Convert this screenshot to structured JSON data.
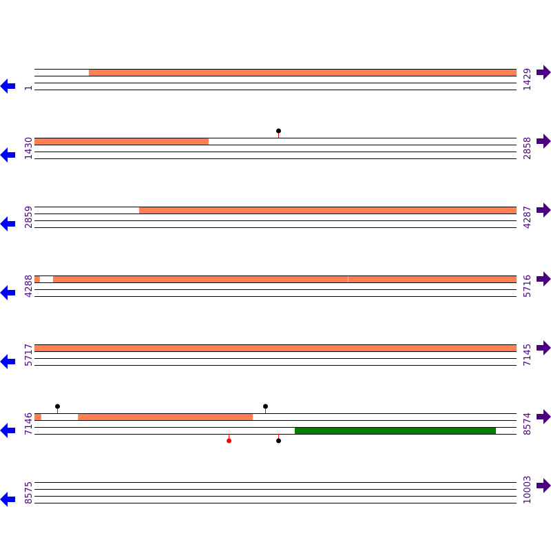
{
  "colors": {
    "orf": "#ff7f50",
    "orf_reverse": "#008000",
    "line": "#000000",
    "label": "#4b0082",
    "arrow_left": "#0000ff",
    "arrow_right": "#4b0082",
    "marker_stem": "#ff0000",
    "marker_black": "#000000",
    "marker_red": "#ff0000"
  },
  "icons": {
    "left": "arrow-left-icon",
    "right": "arrow-right-icon"
  },
  "rows": [
    {
      "start": "1",
      "end": "1429",
      "s": 1,
      "e": 1429,
      "features": [
        {
          "strand": "forward",
          "from": 162,
          "to": 1429
        }
      ],
      "markers": []
    },
    {
      "start": "1430",
      "end": "2858",
      "s": 1430,
      "e": 2858,
      "features": [
        {
          "strand": "forward",
          "from": 1430,
          "to": 1946
        }
      ],
      "markers": [
        {
          "strand": "forward",
          "pos": 2152,
          "color": "black"
        }
      ]
    },
    {
      "start": "2859",
      "end": "4287",
      "s": 2859,
      "e": 4287,
      "features": [
        {
          "strand": "forward",
          "from": 3169,
          "to": 4287
        }
      ],
      "markers": []
    },
    {
      "start": "4288",
      "end": "5716",
      "s": 4288,
      "e": 5716,
      "features": [
        {
          "strand": "forward",
          "from": 4288,
          "to": 4304
        },
        {
          "strand": "forward",
          "from": 4343,
          "to": 5216
        },
        {
          "strand": "forward",
          "from": 5217,
          "to": 5716
        }
      ],
      "markers": []
    },
    {
      "start": "5717",
      "end": "7145",
      "s": 5717,
      "e": 7145,
      "features": [
        {
          "strand": "forward",
          "from": 5717,
          "to": 7145
        }
      ],
      "markers": []
    },
    {
      "start": "7146",
      "end": "8574",
      "s": 7146,
      "e": 8574,
      "features": [
        {
          "strand": "forward",
          "from": 7146,
          "to": 7166
        },
        {
          "strand": "forward",
          "from": 7275,
          "to": 7793
        },
        {
          "strand": "reverse",
          "from": 7917,
          "to": 8513
        }
      ],
      "markers": [
        {
          "strand": "forward",
          "pos": 7213,
          "color": "black"
        },
        {
          "strand": "forward",
          "pos": 7829,
          "color": "black"
        },
        {
          "strand": "reverse",
          "pos": 7721,
          "color": "red"
        },
        {
          "strand": "reverse",
          "pos": 7868,
          "color": "black"
        }
      ]
    },
    {
      "start": "8575",
      "end": "10003",
      "s": 8575,
      "e": 10003,
      "features": [],
      "markers": []
    }
  ]
}
